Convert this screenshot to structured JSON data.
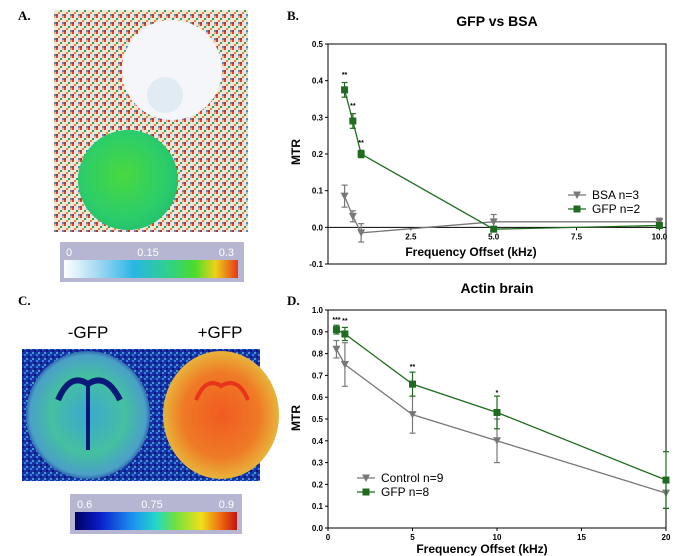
{
  "panels": {
    "a": {
      "letter": "A."
    },
    "b": {
      "letter": "B."
    },
    "c": {
      "letter": "C.",
      "left_label": "-GFP",
      "right_label": "+GFP"
    },
    "d": {
      "letter": "D."
    }
  },
  "colorbar_a": {
    "ticks": [
      "0",
      "0.15",
      "0.3"
    ]
  },
  "colorbar_c": {
    "ticks": [
      "0.6",
      "0.75",
      "0.9"
    ]
  },
  "colors": {
    "grey": "#787878",
    "green": "#1f6b1f",
    "bar_bg": "#b6b6d2"
  },
  "chart_data": [
    {
      "type": "line",
      "title": "GFP vs BSA",
      "xlabel": "Frequency Offset (kHz)",
      "ylabel": "MTR",
      "xlim": [
        0,
        10.2
      ],
      "ylim": [
        -0.1,
        0.5
      ],
      "xticks": [
        "2.5",
        "5.0",
        "7.5",
        "10.0"
      ],
      "xtick_values": [
        2.5,
        5.0,
        7.5,
        10.0
      ],
      "yticks": [
        "-0.1",
        "0.0",
        "0.1",
        "0.2",
        "0.3",
        "0.4",
        "0.5"
      ],
      "ytick_values": [
        -0.1,
        0.0,
        0.1,
        0.2,
        0.3,
        0.4,
        0.5
      ],
      "legend_position": "right",
      "series": [
        {
          "name": "BSA n=3",
          "color": "#787878",
          "marker": "triangle-down",
          "x": [
            0.5,
            0.75,
            1.0,
            5.0,
            10.0
          ],
          "y": [
            0.085,
            0.03,
            -0.015,
            0.015,
            0.015
          ],
          "err": [
            0.03,
            0.015,
            0.025,
            0.02,
            0.01
          ]
        },
        {
          "name": "GFP n=2",
          "color": "#1f6b1f",
          "marker": "square",
          "x": [
            0.5,
            0.75,
            1.0,
            5.0,
            10.0
          ],
          "y": [
            0.375,
            0.29,
            0.2,
            -0.005,
            0.005
          ],
          "err": [
            0.02,
            0.02,
            0.01,
            0.005,
            0.005
          ]
        }
      ],
      "annotations": [
        {
          "text": "**",
          "x": 0.5,
          "y": 0.41
        },
        {
          "text": "**",
          "x": 0.75,
          "y": 0.325
        },
        {
          "text": "**",
          "x": 1.0,
          "y": 0.225
        }
      ]
    },
    {
      "type": "line",
      "title": "Actin brain",
      "xlabel": "Frequency Offset (kHz)",
      "ylabel": "MTR",
      "xlim": [
        0,
        20
      ],
      "ylim": [
        0.0,
        1.0
      ],
      "xticks": [
        "0",
        "5",
        "10",
        "15",
        "20"
      ],
      "xtick_values": [
        0,
        5,
        10,
        15,
        20
      ],
      "yticks": [
        "0.0",
        "0.1",
        "0.2",
        "0.3",
        "0.4",
        "0.5",
        "0.6",
        "0.7",
        "0.8",
        "0.9",
        "1.0"
      ],
      "ytick_values": [
        0.0,
        0.1,
        0.2,
        0.3,
        0.4,
        0.5,
        0.6,
        0.7,
        0.8,
        0.9,
        1.0
      ],
      "legend_position": "bottom-left",
      "series": [
        {
          "name": "Control n=9",
          "color": "#787878",
          "marker": "triangle-down",
          "x": [
            0.5,
            1,
            5,
            10,
            20
          ],
          "y": [
            0.82,
            0.75,
            0.52,
            0.4,
            0.16
          ],
          "err": [
            0.04,
            0.1,
            0.085,
            0.1,
            0.07
          ]
        },
        {
          "name": "GFP n=8",
          "color": "#1f6b1f",
          "marker": "square",
          "x": [
            0.5,
            1,
            5,
            10,
            20
          ],
          "y": [
            0.91,
            0.89,
            0.66,
            0.53,
            0.22
          ],
          "err": [
            0.02,
            0.03,
            0.055,
            0.075,
            0.13
          ]
        }
      ],
      "annotations": [
        {
          "text": "***",
          "x": 0.5,
          "y": 0.945
        },
        {
          "text": "**",
          "x": 1,
          "y": 0.94
        },
        {
          "text": "**",
          "x": 5,
          "y": 0.73
        },
        {
          "text": "*",
          "x": 10,
          "y": 0.61
        }
      ]
    }
  ]
}
